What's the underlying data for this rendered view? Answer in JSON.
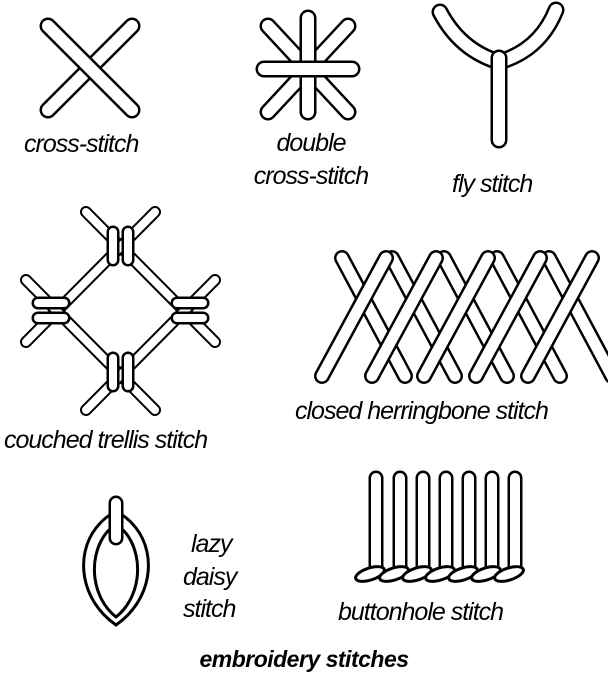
{
  "figure": {
    "title": "embroidery stitches",
    "stitches": [
      {
        "id": "cross-stitch",
        "label": "cross-stitch"
      },
      {
        "id": "double-cross-stitch",
        "label_line1": "double",
        "label_line2": "cross-stitch"
      },
      {
        "id": "fly-stitch",
        "label": "fly stitch"
      },
      {
        "id": "couched-trellis-stitch",
        "label": "couched trellis stitch"
      },
      {
        "id": "closed-herringbone-stitch",
        "label": "closed herringbone stitch"
      },
      {
        "id": "lazy-daisy-stitch",
        "label_line1": "lazy",
        "label_line2": "daisy",
        "label_line3": "stitch"
      },
      {
        "id": "buttonhole-stitch",
        "label": "buttonhole stitch"
      }
    ]
  },
  "colors": {
    "ink": "#000000",
    "paper": "#ffffff"
  }
}
